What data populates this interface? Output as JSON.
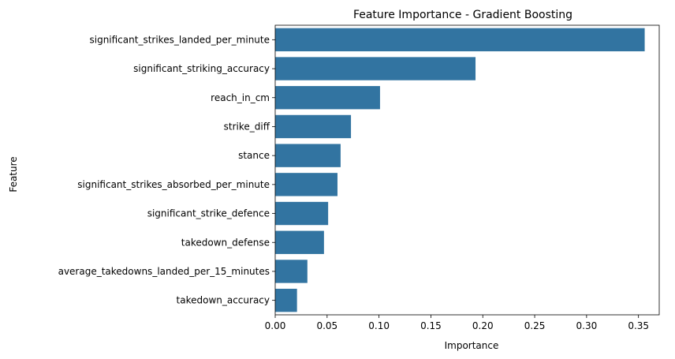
{
  "chart_data": {
    "type": "bar",
    "orientation": "horizontal",
    "title": "Feature Importance - Gradient Boosting",
    "xlabel": "Importance",
    "ylabel": "Feature",
    "xlim": [
      0,
      0.37
    ],
    "xticks": [
      "0.00",
      "0.05",
      "0.10",
      "0.15",
      "0.20",
      "0.25",
      "0.30",
      "0.35"
    ],
    "grid": false,
    "bar_color": "#3274a1",
    "categories": [
      "significant_strikes_landed_per_minute",
      "significant_striking_accuracy",
      "reach_in_cm",
      "strike_diff",
      "stance",
      "significant_strikes_absorbed_per_minute",
      "significant_strike_defence",
      "takedown_defense",
      "average_takedowns_landed_per_15_minutes",
      "takedown_accuracy"
    ],
    "values": [
      0.356,
      0.193,
      0.101,
      0.073,
      0.063,
      0.06,
      0.051,
      0.047,
      0.031,
      0.021
    ]
  }
}
